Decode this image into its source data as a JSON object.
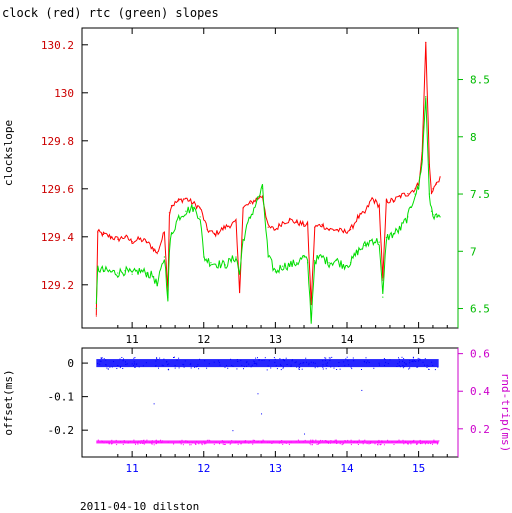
{
  "title": "clock (red) rtc (green) slopes",
  "footer": "2011-04-10 dilston",
  "colors": {
    "clock": "#ff0000",
    "rtc": "#00dd00",
    "offset": "#0000ff",
    "rndtrip": "#ff00ff",
    "axis": "#000000"
  },
  "chart_data": [
    {
      "type": "line",
      "ylabel": "clockslope",
      "x_ticks": [
        "11",
        "12",
        "13",
        "14",
        "15"
      ],
      "xlim": [
        10.3,
        15.55
      ],
      "left_axis": {
        "ylim": [
          129.02,
          130.27
        ],
        "ticks": [
          "129.2",
          "129.4",
          "129.6",
          "129.8",
          "130",
          "130.2"
        ],
        "tick_values": [
          129.2,
          129.4,
          129.6,
          129.8,
          130.0,
          130.2
        ],
        "color": "#cc0000"
      },
      "right_axis": {
        "ylim": [
          6.33,
          8.95
        ],
        "ticks": [
          "6.5",
          "7",
          "7.5",
          "8",
          "8.5"
        ],
        "tick_values": [
          6.5,
          7.0,
          7.5,
          8.0,
          8.5
        ],
        "color": "#00bb00"
      },
      "series": [
        {
          "name": "clock",
          "axis": "left",
          "x": [
            10.5,
            10.52,
            10.6,
            10.7,
            10.8,
            10.9,
            11.0,
            11.1,
            11.2,
            11.3,
            11.35,
            11.45,
            11.5,
            11.52,
            11.55,
            11.65,
            11.75,
            11.85,
            11.95,
            12.05,
            12.15,
            12.3,
            12.45,
            12.5,
            12.55,
            12.65,
            12.75,
            12.82,
            12.9,
            13.0,
            13.1,
            13.2,
            13.3,
            13.4,
            13.45,
            13.5,
            13.55,
            13.65,
            13.75,
            13.85,
            13.95,
            14.05,
            14.15,
            14.25,
            14.35,
            14.45,
            14.5,
            14.55,
            14.65,
            14.75,
            14.85,
            14.95,
            15.0,
            15.05,
            15.1,
            15.15,
            15.18,
            15.2,
            15.25,
            15.3
          ],
          "y": [
            129.07,
            129.42,
            129.41,
            129.4,
            129.39,
            129.4,
            129.38,
            129.39,
            129.38,
            129.35,
            129.33,
            129.42,
            129.18,
            129.5,
            129.53,
            129.55,
            129.56,
            129.54,
            129.52,
            129.43,
            129.41,
            129.44,
            129.46,
            129.17,
            129.52,
            129.54,
            129.56,
            129.57,
            129.44,
            129.43,
            129.46,
            129.47,
            129.46,
            129.45,
            129.45,
            129.12,
            129.44,
            129.45,
            129.43,
            129.43,
            129.42,
            129.43,
            129.48,
            129.5,
            129.56,
            129.53,
            129.22,
            129.55,
            129.55,
            129.57,
            129.58,
            129.6,
            129.62,
            129.75,
            130.21,
            129.7,
            129.58,
            129.6,
            129.62,
            129.65
          ]
        },
        {
          "name": "rtc",
          "axis": "right",
          "x": [
            10.5,
            10.52,
            10.6,
            10.7,
            10.8,
            10.9,
            11.0,
            11.1,
            11.2,
            11.3,
            11.35,
            11.45,
            11.5,
            11.52,
            11.55,
            11.65,
            11.75,
            11.85,
            11.95,
            12.0,
            12.1,
            12.3,
            12.45,
            12.5,
            12.55,
            12.65,
            12.75,
            12.82,
            12.9,
            13.0,
            13.1,
            13.2,
            13.3,
            13.4,
            13.45,
            13.5,
            13.55,
            13.65,
            13.75,
            13.85,
            13.95,
            14.05,
            14.15,
            14.25,
            14.35,
            14.45,
            14.5,
            14.55,
            14.65,
            14.75,
            14.85,
            14.95,
            15.0,
            15.05,
            15.1,
            15.15,
            15.18,
            15.2,
            15.25,
            15.3
          ],
          "y": [
            6.5,
            6.85,
            6.83,
            6.82,
            6.81,
            6.83,
            6.8,
            6.83,
            6.81,
            6.78,
            6.7,
            6.95,
            6.6,
            7.0,
            7.15,
            7.3,
            7.35,
            7.38,
            7.3,
            6.95,
            6.9,
            6.88,
            6.95,
            6.8,
            7.1,
            7.3,
            7.45,
            7.55,
            6.95,
            6.82,
            6.87,
            6.88,
            6.9,
            6.95,
            6.9,
            6.4,
            6.92,
            6.95,
            6.9,
            6.92,
            6.88,
            6.9,
            7.0,
            7.05,
            7.1,
            7.08,
            6.6,
            7.12,
            7.15,
            7.2,
            7.3,
            7.5,
            7.55,
            7.8,
            8.35,
            7.5,
            7.35,
            7.32,
            7.3,
            7.3
          ]
        }
      ]
    },
    {
      "type": "scatter",
      "ylabel": "offset(ms)",
      "ylabel_right": "rnd-trip(ms)",
      "x_ticks": [
        "11",
        "12",
        "13",
        "14",
        "15"
      ],
      "xlim": [
        10.3,
        15.55
      ],
      "left_axis": {
        "ylim": [
          -0.28,
          0.045
        ],
        "ticks": [
          "0",
          "-0.1",
          "-0.2"
        ],
        "tick_values": [
          0.0,
          -0.1,
          -0.2
        ],
        "color": "#000000"
      },
      "right_axis": {
        "ylim": [
          0.05,
          0.63
        ],
        "ticks": [
          "0.6",
          "0.4",
          "0.2"
        ],
        "tick_values": [
          0.6,
          0.4,
          0.2
        ],
        "color": "#cc00cc"
      },
      "series": [
        {
          "name": "offset",
          "axis": "left",
          "x_range": [
            10.5,
            15.28
          ],
          "y_center": 0.0,
          "y_spread": 0.012
        },
        {
          "name": "rnd-trip",
          "axis": "right",
          "x_range": [
            10.5,
            15.28
          ],
          "y_center": 0.13,
          "y_spread": 0.008
        }
      ]
    }
  ]
}
